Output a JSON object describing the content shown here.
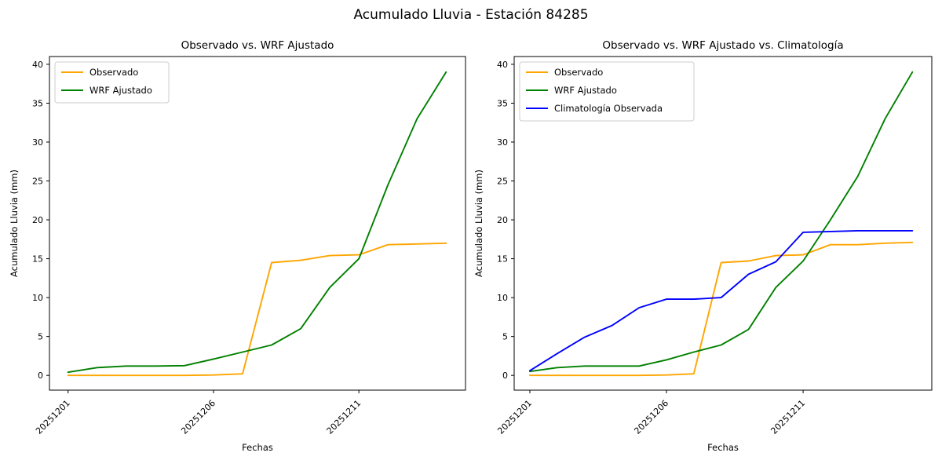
{
  "figure": {
    "suptitle": "Acumulado Lluvia - Estación 84285",
    "background": "#ffffff"
  },
  "chart_data": [
    {
      "type": "line",
      "title": "Observado vs. WRF Ajustado",
      "xlabel": "Fechas",
      "ylabel": "Acumulado Lluvia (mm)",
      "x": [
        "20251201",
        "20251202",
        "20251203",
        "20251204",
        "20251205",
        "20251206",
        "20251207",
        "20251208",
        "20251209",
        "20251210",
        "20251211",
        "20251212",
        "20251213",
        "20251214"
      ],
      "x_tick_indices": [
        0,
        5,
        10
      ],
      "x_tick_labels": [
        "20251201",
        "20251206",
        "20251211"
      ],
      "yticks": [
        0,
        5,
        10,
        15,
        20,
        25,
        30,
        35,
        40
      ],
      "ylim": [
        0,
        40
      ],
      "grid": false,
      "legend_position": "upper left",
      "series": [
        {
          "name": "Observado",
          "color": "#ffa500",
          "values": [
            0.0,
            0.0,
            0.0,
            0.0,
            0.0,
            0.05,
            0.2,
            14.5,
            14.8,
            15.4,
            15.5,
            16.8,
            16.9,
            17.0
          ]
        },
        {
          "name": "WRF Ajustado",
          "color": "#008000",
          "values": [
            0.4,
            1.0,
            1.2,
            1.2,
            1.25,
            2.1,
            3.0,
            3.9,
            6.0,
            11.3,
            15.0,
            24.5,
            33.0,
            39.0
          ]
        }
      ]
    },
    {
      "type": "line",
      "title": "Observado vs. WRF Ajustado vs. Climatología",
      "xlabel": "Fechas",
      "ylabel": "Acumulado Lluvia (mm)",
      "x": [
        "20251201",
        "20251202",
        "20251203",
        "20251204",
        "20251205",
        "20251206",
        "20251207",
        "20251208",
        "20251209",
        "20251210",
        "20251211",
        "20251212",
        "20251213",
        "20251214",
        "20251215"
      ],
      "x_tick_indices": [
        0,
        5,
        10
      ],
      "x_tick_labels": [
        "20251201",
        "20251206",
        "20251211"
      ],
      "yticks": [
        0,
        5,
        10,
        15,
        20,
        25,
        30,
        35,
        40
      ],
      "ylim": [
        0,
        40
      ],
      "grid": false,
      "legend_position": "upper left",
      "series": [
        {
          "name": "Observado",
          "color": "#ffa500",
          "values": [
            0.0,
            0.0,
            0.0,
            0.0,
            0.0,
            0.05,
            0.2,
            14.5,
            14.7,
            15.4,
            15.5,
            16.8,
            16.8,
            17.0,
            17.1
          ]
        },
        {
          "name": "WRF Ajustado",
          "color": "#008000",
          "values": [
            0.5,
            1.0,
            1.2,
            1.2,
            1.2,
            2.0,
            3.0,
            3.9,
            5.9,
            11.3,
            14.7,
            20.0,
            25.6,
            33.0,
            39.0
          ]
        },
        {
          "name": "Climatología Observada",
          "color": "#0000ff",
          "values": [
            0.6,
            2.8,
            4.9,
            6.4,
            8.7,
            9.8,
            9.8,
            10.0,
            13.0,
            14.6,
            18.4,
            18.5,
            18.6,
            18.6,
            18.6
          ]
        }
      ]
    }
  ]
}
